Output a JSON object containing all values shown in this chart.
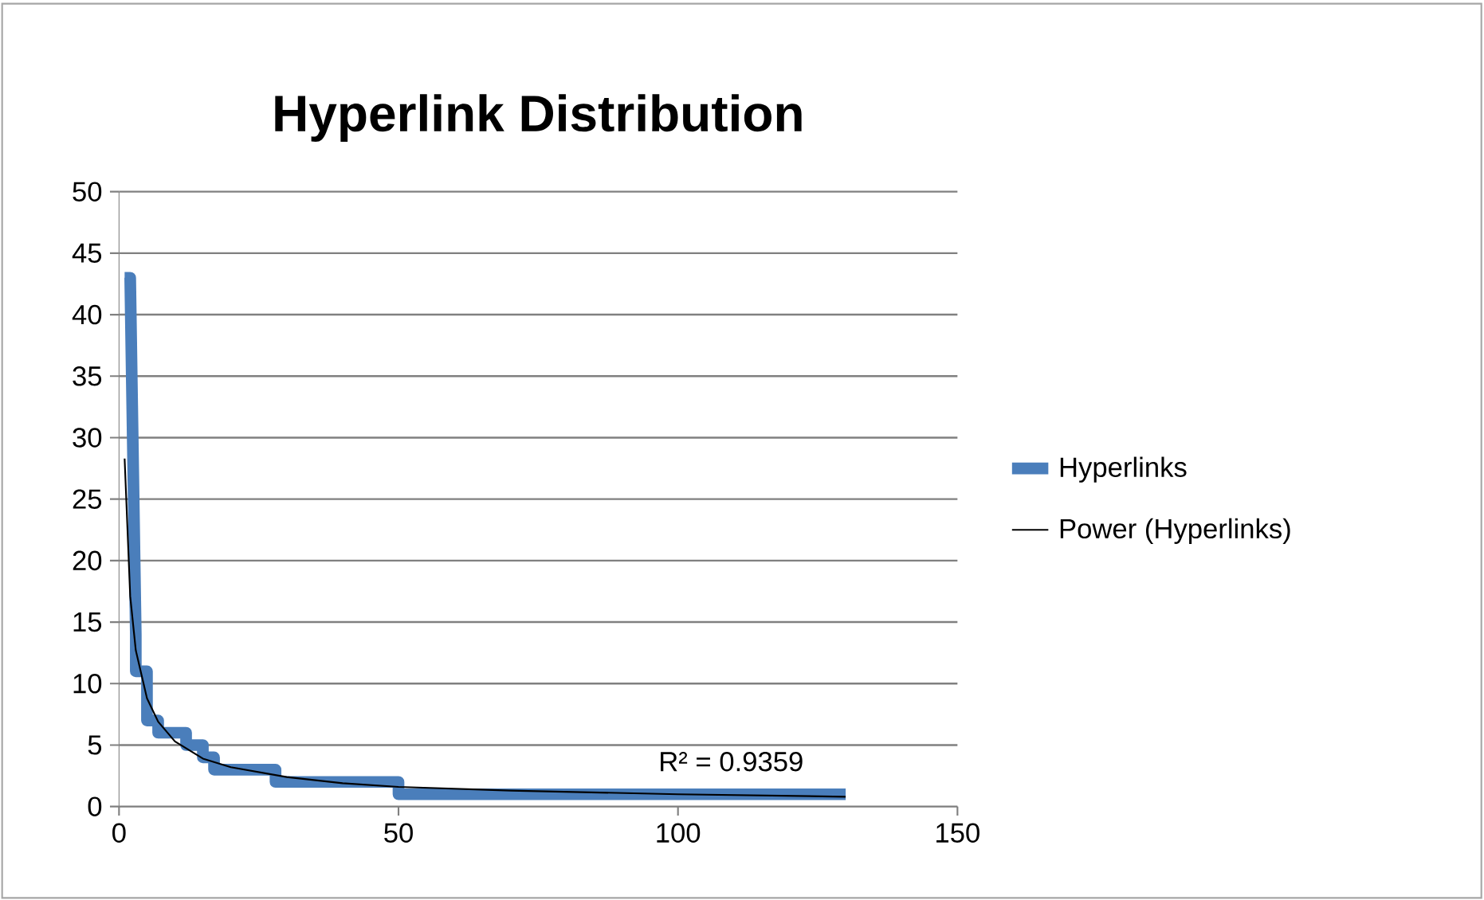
{
  "chart_data": {
    "type": "line",
    "title": "Hyperlink Distribution",
    "series": [
      {
        "name": "Hyperlinks",
        "color": "#4a7ebb",
        "x": [
          1,
          2,
          3,
          3,
          5,
          5,
          7,
          7,
          12,
          12,
          15,
          15,
          17,
          17,
          28,
          28,
          50,
          50,
          130
        ],
        "values": [
          43,
          43,
          14,
          11,
          11,
          7,
          7,
          6,
          6,
          5,
          5,
          4,
          4,
          3,
          3,
          2,
          2,
          1,
          1
        ]
      },
      {
        "name": "Power (Hyperlinks)",
        "color": "#000000",
        "x": [
          1,
          2,
          3,
          5,
          7,
          10,
          15,
          20,
          30,
          40,
          50,
          70,
          100,
          130
        ],
        "values": [
          28.3,
          17.1,
          12.7,
          8.8,
          6.9,
          5.3,
          3.9,
          3.2,
          2.4,
          1.9,
          1.6,
          1.3,
          1.0,
          0.8
        ]
      }
    ],
    "annotations": [
      "R² = 0.9359"
    ],
    "xlim": [
      0,
      150
    ],
    "xticks": [
      0,
      50,
      100,
      150
    ],
    "ylim": [
      0,
      50
    ],
    "yticks": [
      0,
      5,
      10,
      15,
      20,
      25,
      30,
      35,
      40,
      45,
      50
    ],
    "grid": "y",
    "legend": "right",
    "marker": "none"
  }
}
